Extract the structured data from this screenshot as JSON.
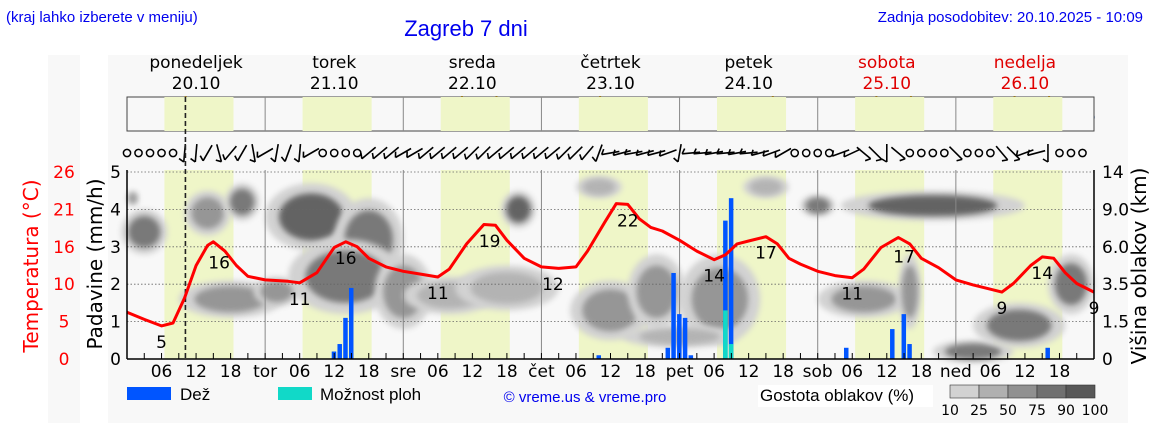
{
  "header": {
    "note": "(kraj lahko izberete v meniju)",
    "title": "Zagreb 7 dni",
    "updated": "Zadnja posodobitev: 20.10.2025 - 10:09"
  },
  "colors": {
    "temperature": "#ff0000",
    "rain": "#0055ff",
    "showers": "#11d9c8",
    "daylight": "#eff6c8",
    "plot_bg": "#f8f8f8",
    "weekend": "#e00000",
    "link": "#0000ee"
  },
  "chart_data": {
    "type": "line",
    "days": [
      {
        "name": "ponedeljek",
        "date": "20.10",
        "weekend": false
      },
      {
        "name": "torek",
        "date": "21.10",
        "weekend": false
      },
      {
        "name": "sreda",
        "date": "22.10",
        "weekend": false
      },
      {
        "name": "četrtek",
        "date": "23.10",
        "weekend": false
      },
      {
        "name": "petek",
        "date": "24.10",
        "weekend": false
      },
      {
        "name": "sobota",
        "date": "25.10",
        "weekend": true
      },
      {
        "name": "nedelja",
        "date": "26.10",
        "weekend": true
      }
    ],
    "x_tick_hours": [
      "06",
      "12",
      "18"
    ],
    "day_abbrev": [
      "",
      "tor",
      "sre",
      "čet",
      "pet",
      "sob",
      "ned"
    ],
    "current_time_hour": 10.15,
    "daylight_hours": [
      6.5,
      18.5
    ],
    "left_axis": {
      "label": "Padavine (mm/h)",
      "ticks": [
        "0",
        "1",
        "2",
        "3",
        "4",
        "5"
      ],
      "ylim": [
        0,
        5
      ]
    },
    "temp_axis": {
      "label": "Temperatura (°C)",
      "ticks": [
        "0",
        "5",
        "10",
        "16",
        "21",
        "26"
      ],
      "ylim": [
        0,
        26
      ]
    },
    "right_axis": {
      "label": "Višina oblakov (km)",
      "ticks": [
        "0",
        "1.5",
        "3.5",
        "6.0",
        "9.0",
        "14"
      ]
    },
    "grid": true,
    "temperature": [
      [
        0,
        6.5
      ],
      [
        3,
        5.5
      ],
      [
        6,
        4.6
      ],
      [
        8,
        5.0
      ],
      [
        10,
        8.5
      ],
      [
        12,
        13
      ],
      [
        14,
        15.8
      ],
      [
        15,
        16.3
      ],
      [
        17,
        15
      ],
      [
        19,
        13
      ],
      [
        21,
        11.5
      ],
      [
        24,
        11
      ],
      [
        28,
        10.8
      ],
      [
        30,
        10.6
      ],
      [
        33,
        12
      ],
      [
        36,
        15.5
      ],
      [
        38,
        16.3
      ],
      [
        40,
        15.6
      ],
      [
        42,
        14
      ],
      [
        45,
        12.8
      ],
      [
        48,
        12.2
      ],
      [
        51,
        11.8
      ],
      [
        54,
        11.4
      ],
      [
        56,
        12.5
      ],
      [
        59,
        16
      ],
      [
        62,
        18.7
      ],
      [
        64,
        18.6
      ],
      [
        66,
        16.5
      ],
      [
        69,
        14
      ],
      [
        72,
        12.8
      ],
      [
        75,
        12.6
      ],
      [
        78,
        12.8
      ],
      [
        80,
        15
      ],
      [
        83,
        19
      ],
      [
        85,
        21.6
      ],
      [
        87,
        21.5
      ],
      [
        89,
        19.5
      ],
      [
        91,
        18.3
      ],
      [
        93,
        17.8
      ],
      [
        96,
        16.5
      ],
      [
        99,
        15
      ],
      [
        102,
        13.8
      ],
      [
        104,
        14.5
      ],
      [
        106,
        16
      ],
      [
        108,
        16.4
      ],
      [
        111,
        17
      ],
      [
        113,
        16
      ],
      [
        115,
        14
      ],
      [
        117,
        13.2
      ],
      [
        120,
        12.2
      ],
      [
        123,
        11.6
      ],
      [
        126,
        11.3
      ],
      [
        128,
        12.5
      ],
      [
        131,
        15.5
      ],
      [
        134,
        16.9
      ],
      [
        136,
        16
      ],
      [
        138,
        14
      ],
      [
        141,
        12.7
      ],
      [
        144,
        11
      ],
      [
        147,
        10.3
      ],
      [
        150,
        9.7
      ],
      [
        152,
        9.3
      ],
      [
        154,
        10.5
      ],
      [
        157,
        13
      ],
      [
        159,
        14.2
      ],
      [
        161,
        14
      ],
      [
        163,
        12
      ],
      [
        165,
        10.5
      ],
      [
        168,
        9.3
      ]
    ],
    "temperature_labels": [
      [
        6,
        "5"
      ],
      [
        16,
        "16"
      ],
      [
        30,
        "11"
      ],
      [
        38,
        "16"
      ],
      [
        54,
        "11"
      ],
      [
        63,
        "19"
      ],
      [
        74,
        "12"
      ],
      [
        87,
        "22"
      ],
      [
        102,
        "14"
      ],
      [
        111,
        "17"
      ],
      [
        126,
        "11"
      ],
      [
        135,
        "17"
      ],
      [
        152,
        "9"
      ],
      [
        159,
        "14"
      ],
      [
        168,
        "9"
      ]
    ],
    "rain": [
      [
        36,
        0.2
      ],
      [
        37,
        0.4
      ],
      [
        38,
        1.1
      ],
      [
        39,
        1.9
      ],
      [
        82,
        0.1
      ],
      [
        94,
        0.3
      ],
      [
        95,
        2.3
      ],
      [
        96,
        1.2
      ],
      [
        97,
        1.1
      ],
      [
        98,
        0.1
      ],
      [
        104,
        3.7
      ],
      [
        105,
        4.3
      ],
      [
        125,
        0.3
      ],
      [
        133,
        0.8
      ],
      [
        135,
        1.2
      ],
      [
        136,
        0.4
      ],
      [
        160,
        0.3
      ]
    ],
    "showers": [
      [
        104,
        1.3
      ],
      [
        105,
        0.4
      ]
    ],
    "cloud_density": [
      [
        3,
        3.4,
        4,
        0.6,
        75
      ],
      [
        1,
        4.3,
        1,
        0.2,
        50
      ],
      [
        14,
        3.9,
        4,
        0.6,
        60
      ],
      [
        20,
        4.2,
        3,
        0.5,
        75
      ],
      [
        32,
        3.8,
        8,
        0.9,
        90
      ],
      [
        42,
        3.2,
        6,
        1.1,
        75
      ],
      [
        38,
        2.2,
        10,
        1.0,
        75
      ],
      [
        18,
        1.6,
        9,
        0.5,
        60
      ],
      [
        26,
        1.8,
        4,
        0.4,
        50
      ],
      [
        48,
        1.8,
        5,
        1.0,
        50
      ],
      [
        56,
        1.7,
        8,
        0.5,
        25
      ],
      [
        66,
        1.9,
        9,
        0.6,
        25
      ],
      [
        68,
        4.0,
        3,
        0.5,
        90
      ],
      [
        82,
        4.6,
        4,
        0.3,
        25
      ],
      [
        84,
        1.3,
        7,
        0.8,
        50
      ],
      [
        92,
        1.8,
        5,
        1.0,
        50
      ],
      [
        103,
        1.6,
        7,
        1.2,
        60
      ],
      [
        111,
        4.6,
        4,
        0.3,
        25
      ],
      [
        120,
        4.1,
        3,
        0.3,
        75
      ],
      [
        140,
        4.1,
        16,
        0.4,
        90
      ],
      [
        128,
        1.6,
        8,
        0.5,
        50
      ],
      [
        136,
        1.8,
        2,
        1.0,
        50
      ],
      [
        147,
        0.2,
        7,
        0.3,
        75
      ],
      [
        155,
        0.9,
        8,
        0.6,
        75
      ],
      [
        164,
        2.0,
        4,
        0.8,
        75
      ],
      [
        96,
        0.6,
        10,
        0.3,
        25
      ]
    ],
    "density_legend": {
      "label": "Gostota oblakov (%)",
      "steps": [
        "10",
        "25",
        "50",
        "75",
        "90",
        "100"
      ],
      "colors": [
        "#d2d2d2",
        "#b0b0b0",
        "#909090",
        "#707070",
        "#585858"
      ]
    }
  },
  "weather_icons": [
    "moon-cloud",
    "sun-cloud",
    "cloud",
    "cloud",
    "cloud",
    "rain-cloud",
    "rain-cloud",
    "cloud",
    "moon-fog",
    "sun-fog",
    "sun-cloud",
    "cloud",
    "moon-cloud",
    "sun-rain-cloud",
    "cloud",
    "moon-rain-cloud",
    "moon-rain-cloud",
    "rain-cloud",
    "sun-cloud",
    "moon-cloud",
    "moon-rain-cloud",
    "sun-cloud",
    "sun-rain-cloud",
    "moon-fog",
    "moon-fog",
    "sun-fog",
    "sun-rain-cloud",
    "cloud"
  ],
  "wind": [
    "o",
    "o",
    "o",
    "o",
    "o",
    5,
    5,
    30,
    -15,
    40,
    30,
    -10,
    60,
    10,
    20,
    5,
    60,
    "o",
    "o",
    "o",
    "o",
    50,
    50,
    50,
    60,
    60,
    50,
    50,
    50,
    50,
    45,
    45,
    50,
    50,
    50,
    50,
    50,
    50,
    45,
    45,
    40,
    20,
    80,
    75,
    80,
    75,
    75,
    70,
    10,
    85,
    85,
    80,
    85,
    80,
    85,
    75,
    70,
    60,
    "o",
    "o",
    "o",
    "o",
    70,
    65,
    -50,
    -45,
    0,
    -50,
    "o",
    "o",
    "o",
    "o",
    -45,
    "o",
    "o",
    "o",
    -40,
    -45,
    70,
    75,
    0,
    "o",
    "o",
    "o"
  ],
  "legend": {
    "rain": "Dež",
    "showers": "Možnost ploh",
    "credit": "© vreme.us & vreme.pro"
  }
}
